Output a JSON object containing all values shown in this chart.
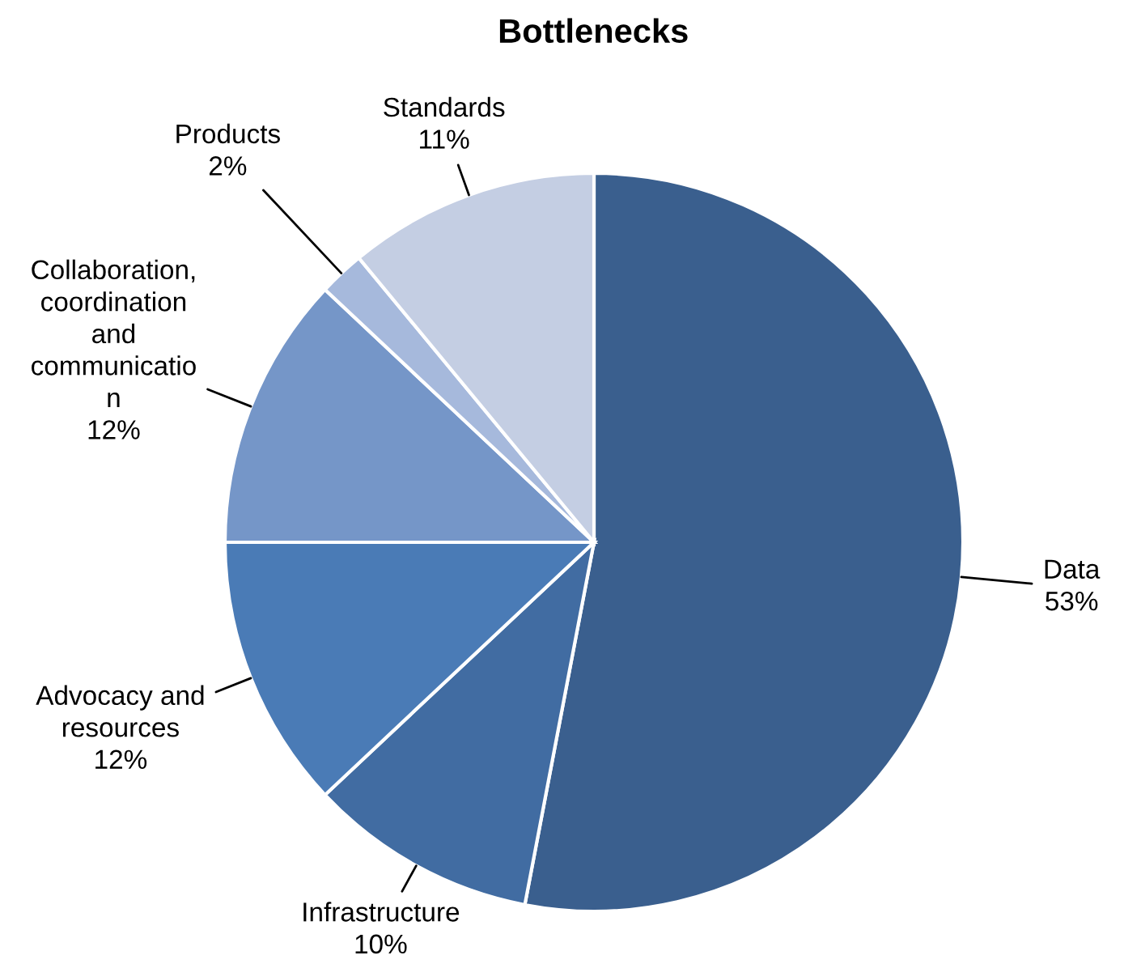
{
  "chart_data": {
    "type": "pie",
    "title": "Bottlenecks",
    "categories": [
      "Data",
      "Infrastructure",
      "Advocacy and\nresources",
      "Collaboration,\ncoordination\nand\ncommunicatio\nn",
      "Products",
      "Standards"
    ],
    "values": [
      53,
      10,
      12,
      12,
      2,
      11
    ],
    "colors": [
      "#3a5f8e",
      "#416ca2",
      "#4a7bb6",
      "#7596c8",
      "#a6b9dc",
      "#c4cee3"
    ],
    "value_labels": [
      "53%",
      "10%",
      "12%",
      "12%",
      "2%",
      "11%"
    ]
  }
}
